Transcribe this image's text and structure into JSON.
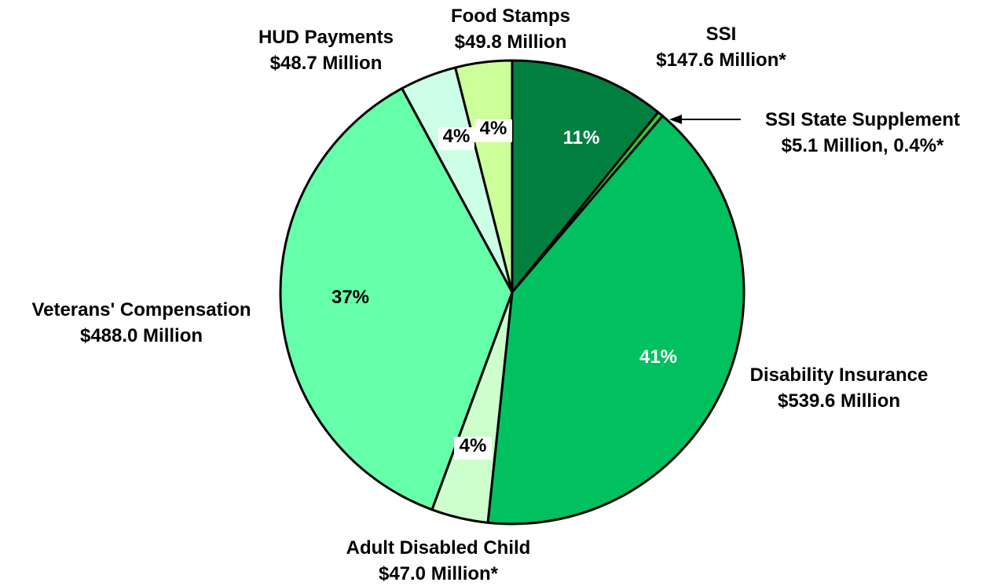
{
  "chart_data": {
    "type": "pie",
    "slices": [
      {
        "name": "SSI",
        "amount": "$147.6 Million*",
        "value": 11,
        "pct_label": "11%",
        "color": "#007F3F",
        "pct_color": "#ffffff"
      },
      {
        "name": "SSI State Supplement",
        "amount": "$5.1 Million, 0.4%*",
        "value": 0.4,
        "pct_label": "",
        "color": "#33CC33",
        "pct_color": "#000000"
      },
      {
        "name": "Disability Insurance",
        "amount": "$539.6 Million",
        "value": 41,
        "pct_label": "41%",
        "color": "#00C060",
        "pct_color": "#ffffff"
      },
      {
        "name": "Adult Disabled Child",
        "amount": "$47.0 Million*",
        "value": 4,
        "pct_label": "4%",
        "color": "#CCFFCC",
        "pct_color": "#000000"
      },
      {
        "name": "Veterans' Compensation",
        "amount": "$488.0 Million",
        "value": 37,
        "pct_label": "37%",
        "color": "#66FFAA",
        "pct_color": "#000000"
      },
      {
        "name": "HUD Payments",
        "amount": "$48.7 Million",
        "value": 4,
        "pct_label": "4%",
        "color": "#CCFFE6",
        "pct_color": "#000000"
      },
      {
        "name": "Food Stamps",
        "amount": "$49.8 Million",
        "value": 4,
        "pct_label": "4%",
        "color": "#CCFF99",
        "pct_color": "#000000"
      }
    ]
  }
}
